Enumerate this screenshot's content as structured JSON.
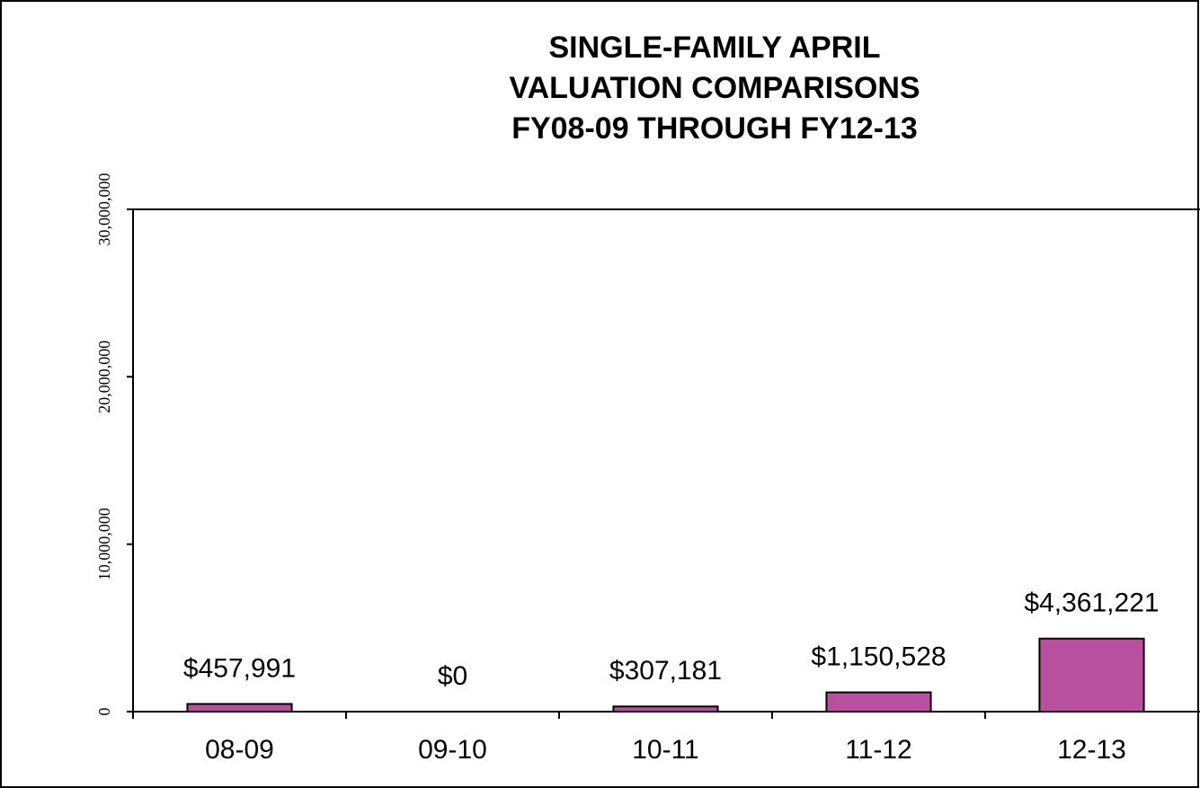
{
  "chart_data": {
    "type": "bar",
    "title": [
      "SINGLE-FAMILY APRIL",
      "VALUATION  COMPARISONS",
      "FY08-09  THROUGH  FY12-13"
    ],
    "categories": [
      "08-09",
      "09-10",
      "10-11",
      "11-12",
      "12-13"
    ],
    "values": [
      457991,
      0,
      307181,
      1150528,
      4361221
    ],
    "value_labels": [
      "$457,991",
      "$0",
      "$307,181",
      "$1,150,528",
      "$4,361,221"
    ],
    "color": "#b9509f",
    "ylim": [
      0,
      30000000
    ],
    "yticks": [
      0,
      {
        "value": 10000000,
        "label": "10,000,000"
      },
      {
        "value": 20000000,
        "label": "20,000,000"
      },
      {
        "value": 30000000,
        "label": "30,000,000"
      }
    ]
  }
}
